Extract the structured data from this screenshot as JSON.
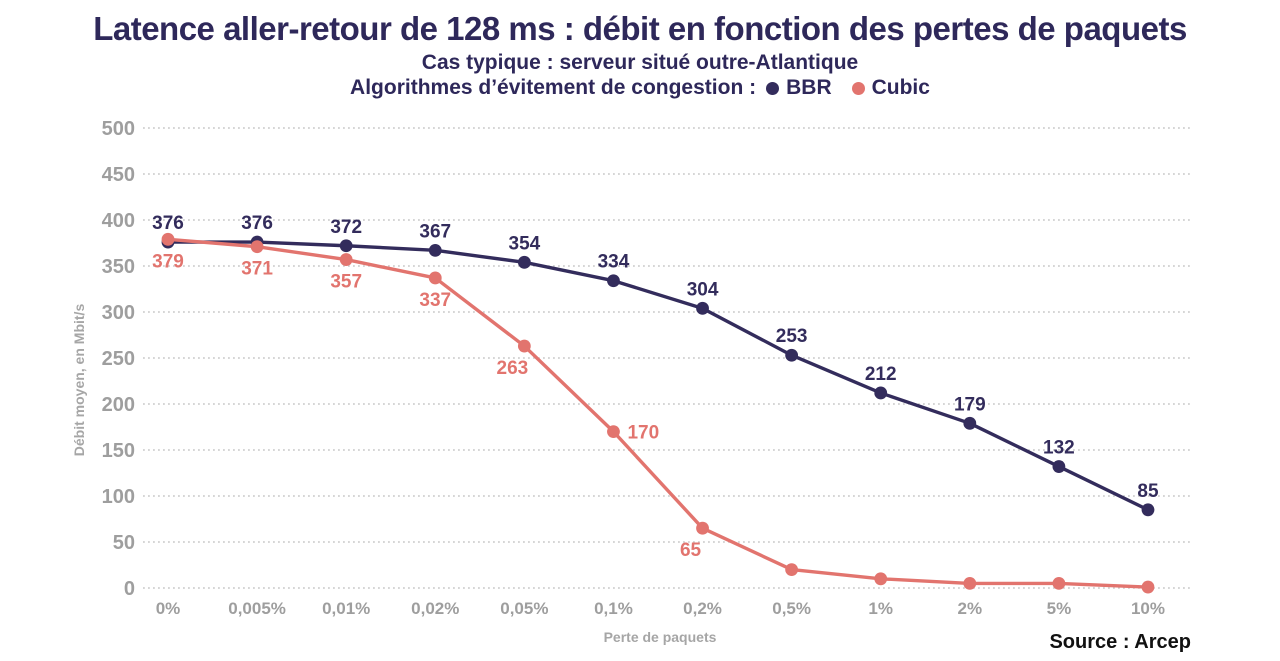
{
  "title": "Latence aller-retour de 128 ms : débit en fonction des pertes de paquets",
  "subtitle": "Cas typique : serveur situé outre-Atlantique",
  "legend": {
    "prefix": "Algorithmes d’évitement de congestion :",
    "items": [
      {
        "name": "BBR",
        "color": "#332c5c"
      },
      {
        "name": "Cubic",
        "color": "#e2746e"
      }
    ]
  },
  "source": "Source : Arcep",
  "colors": {
    "title_text": "#2e285a",
    "axis_text": "#9e9e9e",
    "gridline": "#c9c9c9",
    "background": "#ffffff",
    "source_text": "#111111"
  },
  "chart_data": {
    "type": "line",
    "title": "Latence aller-retour de 128 ms : débit en fonction des pertes de paquets",
    "subtitle": "Cas typique : serveur situé outre-Atlantique",
    "categories": [
      "0%",
      "0,005%",
      "0,01%",
      "0,02%",
      "0,05%",
      "0,1%",
      "0,2%",
      "0,5%",
      "1%",
      "2%",
      "5%",
      "10%"
    ],
    "series": [
      {
        "name": "BBR",
        "color": "#332c5c",
        "values": [
          376,
          376,
          372,
          367,
          354,
          334,
          304,
          253,
          212,
          179,
          132,
          85
        ],
        "point_labels": [
          "376",
          "376",
          "372",
          "367",
          "354",
          "334",
          "304",
          "253",
          "212",
          "179",
          "132",
          "85"
        ],
        "label_pos": [
          "above",
          "above",
          "above",
          "above",
          "above",
          "above",
          "above",
          "above",
          "above",
          "above",
          "above",
          "above"
        ]
      },
      {
        "name": "Cubic",
        "color": "#e2746e",
        "values": [
          379,
          371,
          357,
          337,
          263,
          170,
          65,
          20,
          10,
          5,
          5,
          1
        ],
        "point_labels": [
          "379",
          "371",
          "357",
          "337",
          "263",
          "170",
          "65",
          "",
          "",
          "",
          "",
          ""
        ],
        "label_pos": [
          "below",
          "below",
          "below",
          "below",
          "below-left",
          "right",
          "below-left",
          "none",
          "none",
          "none",
          "none",
          "none"
        ]
      }
    ],
    "xlabel": "Perte de paquets",
    "ylabel": "Débit moyen, en Mbit/s",
    "ylim": [
      0,
      500
    ],
    "yticks": [
      0,
      50,
      100,
      150,
      200,
      250,
      300,
      350,
      400,
      450,
      500
    ],
    "grid": "horizontal-dotted",
    "legend_position": "top"
  }
}
